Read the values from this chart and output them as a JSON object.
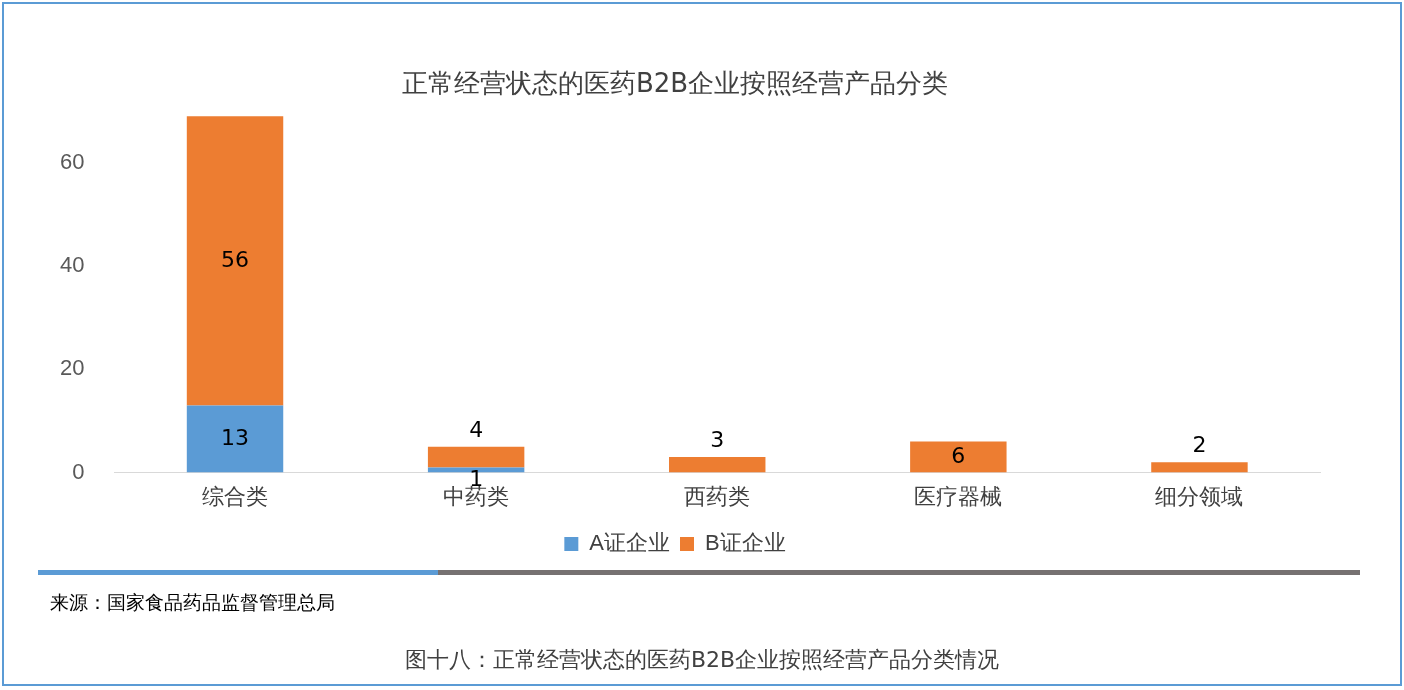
{
  "chart_data": {
    "type": "bar",
    "title": "正常经营状态的医药B2B企业按照经营产品分类",
    "categories": [
      "综合类",
      "中药类",
      "西药类",
      "医疗器械",
      "细分领域"
    ],
    "stacked": true,
    "series": [
      {
        "name": "A证企业",
        "color": "#5b9bd5",
        "values": [
          13,
          1,
          null,
          null,
          null
        ],
        "value_labels": [
          "13",
          "1",
          null,
          null,
          null
        ]
      },
      {
        "name": "B证企业",
        "color": "#ed7d31",
        "values": [
          56,
          4,
          3,
          6,
          2
        ],
        "value_labels": [
          "56",
          "4",
          "3",
          "6",
          "2"
        ]
      }
    ],
    "ylim": [
      0,
      70
    ],
    "yticks": [
      0,
      20,
      40,
      60
    ],
    "grid": false,
    "legend": "bottom",
    "annotations": [
      "来源：国家食品药品监督管理总局",
      "图十八：正常经营状态的医药B2B企业按照经营产品分类情况"
    ]
  }
}
